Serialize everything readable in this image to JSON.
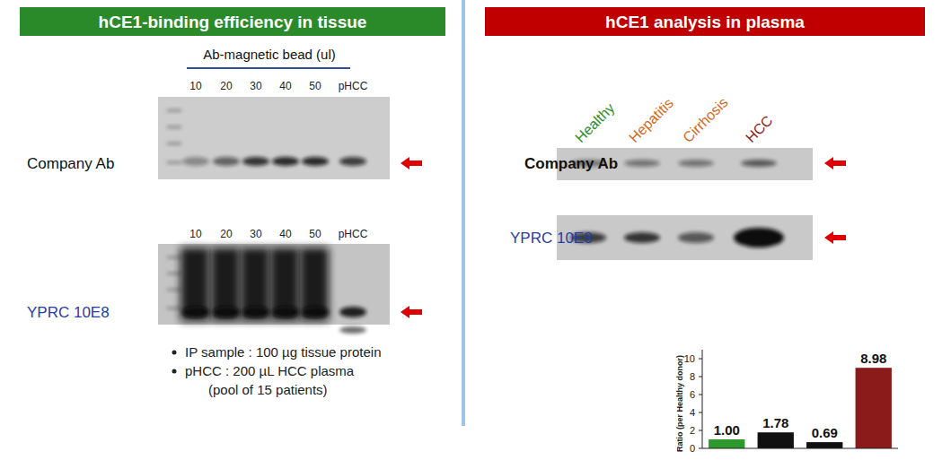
{
  "panels": {
    "left": {
      "title": "hCE1-binding efficiency in tissue",
      "lane_header": "Ab-magnetic bead (ul)",
      "lanes": [
        "10",
        "20",
        "30",
        "40",
        "50",
        "pHCC"
      ],
      "rows": [
        "Company Ab",
        "YPRC 10E8"
      ],
      "notes": [
        "IP sample : 100 µg tissue protein",
        "pHCC : 200 µL HCC plasma",
        "(pool of 15 patients)"
      ]
    },
    "right": {
      "title": "hCE1 analysis in plasma",
      "lanes": [
        "Healthy",
        "Hepatitis",
        "Cirrhosis",
        "HCC"
      ],
      "rows": [
        "Company Ab",
        "YPRC 10E8"
      ]
    }
  },
  "chart_data": {
    "type": "bar",
    "categories": [
      null,
      null,
      null,
      null
    ],
    "values": [
      1.0,
      1.78,
      0.69,
      8.98
    ],
    "value_labels": [
      "1.00",
      "1.78",
      "0.69",
      "8.98"
    ],
    "colors": [
      "#2e9a2e",
      "#111111",
      "#111111",
      "#8b1a1a"
    ],
    "y_label": "Ratio (per Healthy donor)",
    "ylim": [
      0,
      11
    ],
    "yticks": [
      0,
      2,
      4,
      6,
      8,
      10
    ],
    "data_labels": true
  }
}
